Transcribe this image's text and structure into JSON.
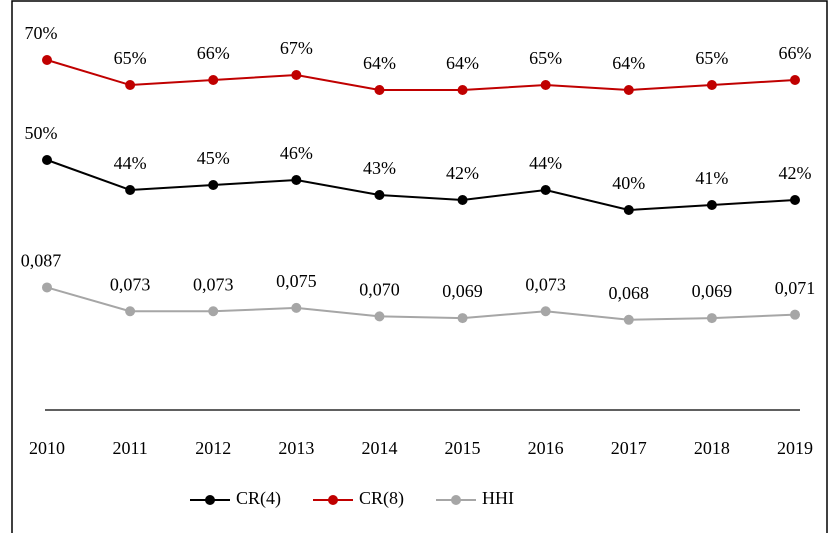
{
  "chart_data": {
    "type": "line",
    "x": [
      "2010",
      "2011",
      "2012",
      "2013",
      "2014",
      "2015",
      "2016",
      "2017",
      "2018",
      "2019"
    ],
    "ylim": [
      0,
      80
    ],
    "y2lim": [
      0.015,
      0.25
    ],
    "series": [
      {
        "name": "CR(4)",
        "color": "#000000",
        "values": [
          50,
          44,
          45,
          46,
          43,
          42,
          44,
          40,
          41,
          42
        ],
        "value_labels": [
          "50%",
          "44%",
          "45%",
          "46%",
          "43%",
          "42%",
          "44%",
          "40%",
          "41%",
          "42%"
        ]
      },
      {
        "name": "CR(8)",
        "color": "#c00000",
        "values": [
          70,
          65,
          66,
          67,
          64,
          64,
          65,
          64,
          65,
          66
        ],
        "value_labels": [
          "70%",
          "65%",
          "66%",
          "67%",
          "64%",
          "64%",
          "65%",
          "64%",
          "65%",
          "66%"
        ]
      },
      {
        "name": "HHI",
        "color": "#a6a6a6",
        "axis": "y2",
        "values": [
          0.087,
          0.073,
          0.073,
          0.075,
          0.07,
          0.069,
          0.073,
          0.068,
          0.069,
          0.071
        ],
        "value_labels": [
          "0,087",
          "0,073",
          "0,073",
          "0,075",
          "0,070",
          "0,069",
          "0,073",
          "0,068",
          "0,069",
          "0,071"
        ]
      }
    ],
    "legend": "bottom"
  }
}
